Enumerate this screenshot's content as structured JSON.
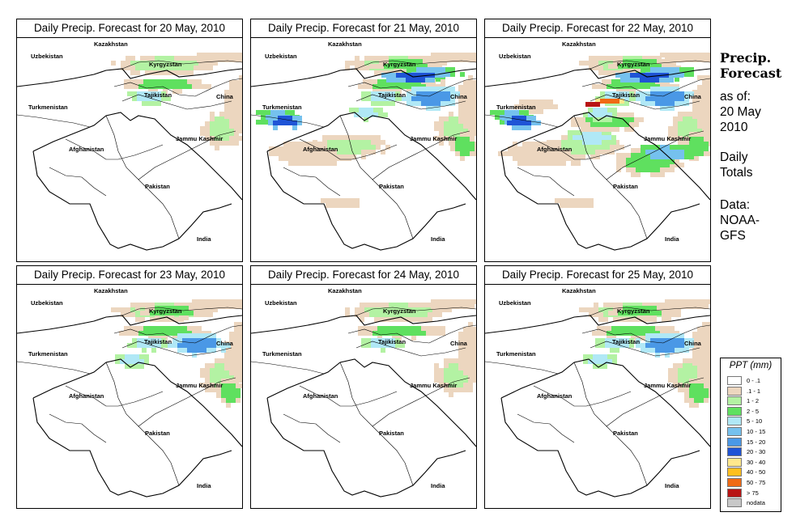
{
  "sidebar": {
    "title_line1": "Precip.",
    "title_line2": "Forecast",
    "asof_line1": "as of:",
    "asof_line2": "20 May",
    "asof_line3": "2010",
    "totals_line1": "Daily",
    "totals_line2": "Totals",
    "data_line1": "Data:",
    "data_line2": "NOAA-",
    "data_line3": "GFS"
  },
  "legend": {
    "title": "PPT (mm)",
    "items": [
      {
        "label": "0 - .1",
        "color": "#ffffff"
      },
      {
        "label": ".1 - 1",
        "color": "#ecd6bf"
      },
      {
        "label": "1 - 2",
        "color": "#b3f2a3"
      },
      {
        "label": "2 - 5",
        "color": "#5fe05f"
      },
      {
        "label": "5 - 10",
        "color": "#b0e8f6"
      },
      {
        "label": "10 - 15",
        "color": "#75c1ee"
      },
      {
        "label": "15 - 20",
        "color": "#4a98e6"
      },
      {
        "label": "20 - 30",
        "color": "#1f54d6"
      },
      {
        "label": "30 - 40",
        "color": "#ffe88c"
      },
      {
        "label": "40 - 50",
        "color": "#ffbf1f"
      },
      {
        "label": "50 - 75",
        "color": "#f06a14"
      },
      {
        "label": "> 75",
        "color": "#b81414"
      },
      {
        "label": "nodata",
        "color": "#c8c8c8"
      }
    ]
  },
  "labels": {
    "kazakhstan": "Kazakhstan",
    "uzbekistan": "Uzbekistan",
    "kyrgyzstan": "Kyrgyzstan",
    "tajikistan": "Tajikistan",
    "turkmenistan": "Turkmenistan",
    "china": "China",
    "jammu_kashmir": "Jammu Kashmir",
    "afghanistan": "Afghanistan",
    "pakistan": "Pakistan",
    "india": "India"
  },
  "panels": [
    {
      "title": "Daily Precip. Forecast for  20 May, 2010",
      "intensity": 1
    },
    {
      "title": "Daily Precip. Forecast for  21 May, 2010",
      "intensity": 3
    },
    {
      "title": "Daily Precip. Forecast for  22 May, 2010",
      "intensity": 4
    },
    {
      "title": "Daily Precip. Forecast for  23 May, 2010",
      "intensity": 2
    },
    {
      "title": "Daily Precip. Forecast for  24 May, 2010",
      "intensity": 1
    },
    {
      "title": "Daily Precip. Forecast for  25 May, 2010",
      "intensity": 2
    }
  ]
}
